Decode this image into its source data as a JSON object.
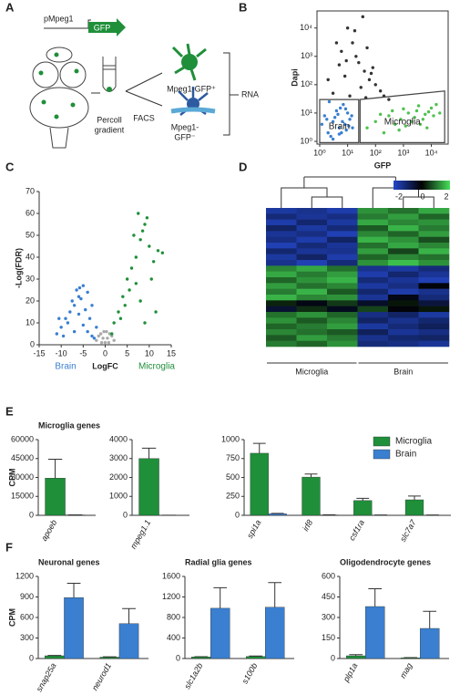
{
  "panel_labels": [
    "A",
    "B",
    "C",
    "D",
    "E",
    "F"
  ],
  "diagram": {
    "promoter": "pMpeg1",
    "reporter": "GFP",
    "gradient": [
      "Percoll",
      "gradient"
    ],
    "sorting": "FACS",
    "positive": "Mpeg1-GFP⁺",
    "negative": [
      "Mpeg1-",
      "GFP⁻"
    ],
    "output": "RNA"
  },
  "chart_data": [
    {
      "type": "scatter",
      "x_label": "GFP",
      "y_label": "Dapi",
      "log_scale": true,
      "frame": true,
      "xlim": [
        0.8,
        40000
      ],
      "ylim": [
        0.8,
        40000
      ],
      "xticks": [
        {
          "value": 1,
          "label": "10⁰"
        },
        {
          "value": 10,
          "label": "10¹"
        },
        {
          "value": 100,
          "label": "10²"
        },
        {
          "value": 1000,
          "label": "10³"
        },
        {
          "value": 10000,
          "label": "10⁴"
        }
      ],
      "yticks": [
        {
          "value": 1,
          "label": "10⁰"
        },
        {
          "value": 10,
          "label": "10¹"
        },
        {
          "value": 100,
          "label": "10²"
        },
        {
          "value": 1000,
          "label": "10³"
        },
        {
          "value": 10000,
          "label": "10⁴"
        }
      ],
      "series": [
        {
          "color": "#333333",
          "x": [
            3,
            8,
            20,
            40,
            100,
            5,
            15,
            30,
            60,
            200,
            10,
            25,
            50,
            2,
            12,
            80,
            35,
            150,
            6,
            45,
            300,
            18,
            70,
            4,
            9
          ],
          "values": [
            50,
            200,
            1000,
            300,
            100,
            500,
            3000,
            80,
            150,
            40,
            10000,
            600,
            2000,
            150,
            40,
            400,
            25000,
            60,
            1500,
            35,
            30,
            8000,
            250,
            3000,
            700
          ]
        },
        {
          "name": "Brain",
          "color": "#3a7fd0",
          "x": [
            2,
            3,
            5,
            1.5,
            8,
            12,
            4,
            6,
            2.5,
            10,
            3.5,
            7,
            15,
            1.2,
            5.5,
            9,
            2.2,
            4.5,
            6.5,
            11,
            3,
            1.8,
            14,
            8.5,
            5
          ],
          "values": [
            2,
            5,
            3,
            8,
            4,
            6,
            12,
            2,
            1.5,
            10,
            7,
            20,
            3,
            4,
            15,
            2.5,
            25,
            9,
            5,
            3.5,
            1.2,
            6,
            8,
            14,
            1.8
          ],
          "gate": {
            "x": [
              1,
              25,
              25,
              1
            ],
            "y": [
              0.9,
              0.9,
              30,
              30
            ]
          }
        },
        {
          "name": "Microglia",
          "color": "#4fc24f",
          "x": [
            50,
            100,
            300,
            800,
            1500,
            3000,
            6000,
            10000,
            200,
            500,
            1200,
            2500,
            5000,
            8000,
            15000,
            400,
            700,
            2000,
            4000,
            12000,
            150,
            1000,
            3500,
            7000,
            20000
          ],
          "values": [
            3,
            5,
            8,
            6,
            10,
            12,
            9,
            15,
            2,
            4,
            3.5,
            7,
            6,
            11,
            20,
            12,
            2.5,
            5,
            4,
            8,
            9,
            14,
            18,
            3,
            10
          ],
          "gate": {
            "x": [
              28,
              28,
              30000,
              30000
            ],
            "y": [
              0.9,
              30,
              60,
              0.9
            ]
          }
        }
      ]
    },
    {
      "type": "scatter",
      "x_label": "LogFC",
      "y_label": "-Log(FDR)",
      "xlim": [
        -15,
        15
      ],
      "ylim": [
        0,
        70
      ],
      "xticks": [
        -15,
        -10,
        -5,
        0,
        5,
        10,
        15
      ],
      "yticks": [
        0,
        10,
        20,
        30,
        40,
        50,
        60,
        70
      ],
      "series": [
        {
          "color": "#aaaaaa",
          "x": [
            -2,
            -1.5,
            -1,
            -0.5,
            0,
            0.5,
            1,
            1.5,
            2,
            -0.8,
            0.8,
            0.3,
            -0.3
          ],
          "values": [
            2,
            4,
            5,
            3,
            1,
            3,
            5,
            4,
            2,
            1,
            1,
            6,
            6
          ]
        },
        {
          "name": "Brain",
          "color": "#3a7fd0",
          "x": [
            -10,
            -9,
            -8,
            -7,
            -6,
            -5,
            -4,
            -3,
            -2,
            -9.5,
            -7.5,
            -6.5,
            -5.5,
            -4.5,
            -3.5,
            -8.5,
            -11,
            -6,
            -5,
            -4,
            -3,
            -7,
            -2.5,
            -10.5,
            -5.8
          ],
          "values": [
            8,
            12,
            15,
            18,
            22,
            27,
            24,
            18,
            8,
            4,
            20,
            25,
            21,
            16,
            12,
            10,
            5,
            14,
            9,
            6,
            4,
            6,
            3,
            12,
            26
          ]
        },
        {
          "name": "Microglia",
          "color": "#1f8f3a",
          "x": [
            1.5,
            2,
            3,
            4,
            5,
            6,
            7,
            8,
            9,
            10,
            11,
            12,
            13,
            5.5,
            6.5,
            7.5,
            8.5,
            9.5,
            4.5,
            3.5,
            10.5,
            8,
            7,
            9,
            11.5
          ],
          "values": [
            5,
            10,
            15,
            22,
            30,
            35,
            40,
            48,
            55,
            45,
            38,
            43,
            42,
            25,
            50,
            60,
            52,
            58,
            18,
            12,
            30,
            20,
            28,
            10,
            15
          ]
        }
      ]
    },
    {
      "type": "heatmap",
      "column_groups": [
        "Microglia",
        "Brain"
      ],
      "zlim": [
        -2,
        2
      ],
      "zticks": [
        -2,
        0,
        2
      ],
      "colors": [
        "#2347c8",
        "#000000",
        "#47e05a"
      ],
      "z": [
        [
          -1.6,
          -1.4,
          -1.7,
          1.3,
          1.0,
          1.5
        ],
        [
          -1.2,
          -1.5,
          -1.3,
          1.1,
          1.4,
          0.9
        ],
        [
          -1.7,
          -1.1,
          -1.6,
          1.5,
          1.2,
          1.3
        ],
        [
          -1.0,
          -1.6,
          -1.2,
          0.8,
          1.6,
          1.1
        ],
        [
          -1.5,
          -1.3,
          -1.8,
          1.2,
          0.9,
          1.4
        ],
        [
          -1.3,
          -1.7,
          -1.0,
          1.6,
          1.3,
          0.7
        ],
        [
          -1.8,
          -1.2,
          -1.5,
          1.0,
          1.5,
          1.2
        ],
        [
          -1.1,
          -1.5,
          -1.4,
          1.4,
          0.6,
          1.6
        ],
        [
          -1.6,
          -1.0,
          -1.7,
          0.9,
          1.2,
          1.0
        ],
        [
          -1.4,
          -1.8,
          -1.2,
          1.3,
          1.7,
          1.3
        ],
        [
          1.2,
          1.5,
          1.0,
          -1.4,
          -1.6,
          -1.2
        ],
        [
          1.5,
          1.1,
          1.4,
          -1.7,
          -1.1,
          -1.5
        ],
        [
          0.9,
          1.3,
          1.6,
          -1.2,
          -1.5,
          -1.8
        ],
        [
          1.4,
          1.0,
          1.2,
          -1.6,
          -1.3,
          -0.1
        ],
        [
          1.1,
          1.6,
          0.8,
          -1.1,
          -1.7,
          -1.4
        ],
        [
          1.6,
          1.2,
          1.3,
          -1.5,
          -0.2,
          -1.2
        ],
        [
          0.3,
          -0.2,
          0.5,
          -0.4,
          0.2,
          -0.6
        ],
        [
          -0.5,
          0.4,
          -0.3,
          0.6,
          -0.1,
          0.2
        ],
        [
          1.0,
          1.3,
          0.9,
          -1.3,
          -1.0,
          -1.6
        ],
        [
          1.3,
          0.8,
          1.2,
          -1.0,
          -1.4,
          -1.1
        ],
        [
          0.9,
          1.1,
          1.4,
          -1.6,
          -1.2,
          -0.9
        ],
        [
          1.2,
          1.0,
          0.8,
          -0.9,
          -1.5,
          -1.3
        ],
        [
          0.8,
          1.4,
          1.1,
          -1.4,
          -1.1,
          -1.0
        ],
        [
          1.1,
          0.9,
          1.3,
          -1.2,
          -1.3,
          -1.5
        ]
      ]
    },
    {
      "type": "bar",
      "title": "Microglia genes",
      "y_label": "CPM",
      "categories": [
        "apoeb"
      ],
      "ylim": [
        0,
        60000
      ],
      "yticks": [
        0,
        15000,
        30000,
        45000,
        60000
      ],
      "series": [
        {
          "name": "Microglia",
          "color": "#1f8f3a",
          "values": [
            29500
          ],
          "errors": [
            15000
          ]
        },
        {
          "name": "Brain",
          "color": "#3a7fd0",
          "values": [
            300
          ],
          "errors": [
            100
          ]
        }
      ]
    },
    {
      "type": "bar",
      "categories": [
        "mpeg1.1"
      ],
      "ylim": [
        0,
        4000
      ],
      "yticks": [
        0,
        1000,
        2000,
        3000,
        4000
      ],
      "series": [
        {
          "name": "Microglia",
          "color": "#1f8f3a",
          "values": [
            3000
          ],
          "errors": [
            550
          ]
        },
        {
          "name": "Brain",
          "color": "#3a7fd0",
          "values": [
            5
          ],
          "errors": [
            2
          ]
        }
      ]
    },
    {
      "type": "bar",
      "categories": [
        "spi1a",
        "irf8",
        "csf1ra",
        "slc7a7"
      ],
      "ylim": [
        0,
        1000
      ],
      "yticks": [
        0,
        250,
        500,
        750,
        1000
      ],
      "legend": "top-right",
      "series": [
        {
          "name": "Microglia",
          "color": "#1f8f3a",
          "values": [
            820,
            505,
            195,
            205
          ],
          "errors": [
            130,
            40,
            30,
            50
          ]
        },
        {
          "name": "Brain",
          "color": "#3a7fd0",
          "values": [
            20,
            5,
            3,
            3
          ],
          "errors": [
            5,
            2,
            1,
            1
          ]
        }
      ]
    },
    {
      "type": "bar",
      "title": "Neuronal genes",
      "y_label": "CPM",
      "categories": [
        "snap25a",
        "neurod1"
      ],
      "ylim": [
        0,
        1200
      ],
      "yticks": [
        0,
        300,
        600,
        900,
        1200
      ],
      "series": [
        {
          "name": "Microglia",
          "color": "#1f8f3a",
          "values": [
            40,
            20
          ],
          "errors": [
            5,
            5
          ]
        },
        {
          "name": "Brain",
          "color": "#3a7fd0",
          "values": [
            890,
            510
          ],
          "errors": [
            210,
            220
          ]
        }
      ]
    },
    {
      "type": "bar",
      "title": "Radial glia genes",
      "categories": [
        "slc1a2b",
        "s100b"
      ],
      "ylim": [
        0,
        1600
      ],
      "yticks": [
        0,
        400,
        800,
        1200,
        1600
      ],
      "series": [
        {
          "name": "Microglia",
          "color": "#1f8f3a",
          "values": [
            30,
            40
          ],
          "errors": [
            5,
            8
          ]
        },
        {
          "name": "Brain",
          "color": "#3a7fd0",
          "values": [
            980,
            1000
          ],
          "errors": [
            400,
            480
          ]
        }
      ]
    },
    {
      "type": "bar",
      "title": "Oligodendrocyte genes",
      "categories": [
        "plp1a",
        "mag"
      ],
      "ylim": [
        0,
        600
      ],
      "yticks": [
        0,
        150,
        300,
        450,
        600
      ],
      "series": [
        {
          "name": "Microglia",
          "color": "#1f8f3a",
          "values": [
            20,
            5
          ],
          "errors": [
            8,
            2
          ]
        },
        {
          "name": "Brain",
          "color": "#3a7fd0",
          "values": [
            380,
            220
          ],
          "errors": [
            130,
            125
          ]
        }
      ]
    }
  ]
}
